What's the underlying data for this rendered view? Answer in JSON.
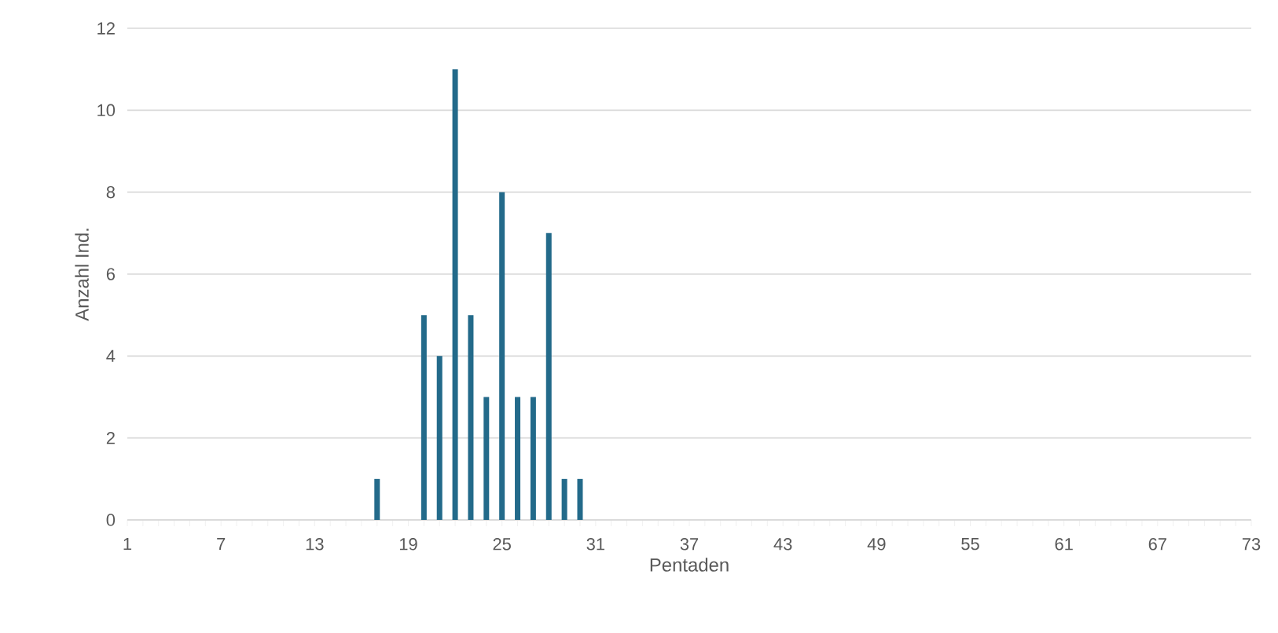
{
  "chart_data": {
    "type": "bar",
    "xlabel": "Pentaden",
    "ylabel": "Anzahl Ind.",
    "categories": [
      "1",
      null,
      null,
      null,
      null,
      null,
      "7",
      null,
      null,
      null,
      null,
      null,
      "13",
      null,
      null,
      null,
      null,
      null,
      "19",
      null,
      null,
      null,
      null,
      null,
      "25",
      null,
      null,
      null,
      null,
      null,
      "31",
      null,
      null,
      null,
      null,
      null,
      "37",
      null,
      null,
      null,
      null,
      null,
      "43",
      null,
      null,
      null,
      null,
      null,
      "49",
      null,
      null,
      null,
      null,
      null,
      "55",
      null,
      null,
      null,
      null,
      null,
      "61",
      null,
      null,
      null,
      null,
      null,
      "67",
      null,
      null,
      null,
      null,
      null,
      "73"
    ],
    "values": [
      null,
      null,
      null,
      null,
      null,
      null,
      null,
      null,
      null,
      null,
      null,
      null,
      null,
      null,
      null,
      null,
      1,
      null,
      null,
      5,
      4,
      11,
      5,
      3,
      8,
      3,
      3,
      7,
      1,
      1,
      null,
      null,
      null,
      null,
      null,
      null,
      null,
      null,
      null,
      null,
      null,
      null,
      null,
      null,
      null,
      null,
      null,
      null,
      null,
      null,
      null,
      null,
      null,
      null,
      null,
      null,
      null,
      null,
      null,
      null,
      null,
      null,
      null,
      null,
      null,
      null,
      null,
      null,
      null,
      null,
      null,
      null,
      null
    ],
    "color": "#236a8a",
    "ylim": [
      0,
      12
    ],
    "yticks": [
      0,
      2,
      4,
      6,
      8,
      10,
      12
    ],
    "grid": "y"
  }
}
